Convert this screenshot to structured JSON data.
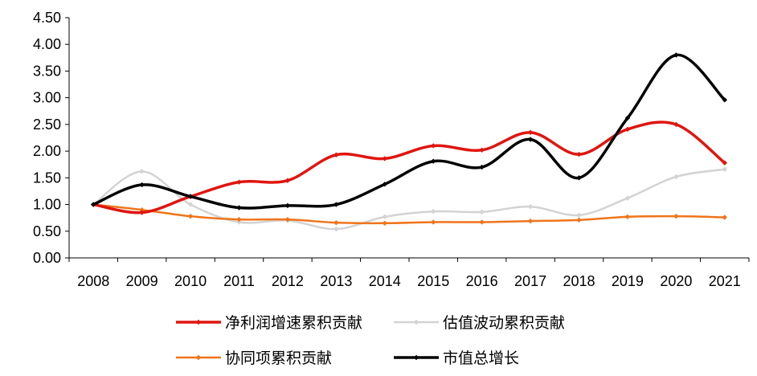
{
  "chart_data": {
    "type": "line",
    "title": "",
    "xlabel": "",
    "ylabel": "",
    "ylim": [
      0,
      4.5
    ],
    "y_ticks": [
      "0.00",
      "0.50",
      "1.00",
      "1.50",
      "2.00",
      "2.50",
      "3.00",
      "3.50",
      "4.00",
      "4.50"
    ],
    "categories": [
      "2008",
      "2009",
      "2010",
      "2011",
      "2012",
      "2013",
      "2014",
      "2015",
      "2016",
      "2017",
      "2018",
      "2019",
      "2020",
      "2021"
    ],
    "legend_position": "bottom",
    "series": [
      {
        "name": "净利润增速累积贡献",
        "color": "#e0150f",
        "values": [
          1.0,
          0.85,
          1.15,
          1.42,
          1.45,
          1.93,
          1.86,
          2.1,
          2.02,
          2.35,
          1.94,
          2.41,
          2.5,
          1.78
        ]
      },
      {
        "name": "估值波动累积贡献",
        "color": "#d3d3d3",
        "values": [
          1.0,
          1.62,
          1.0,
          0.67,
          0.7,
          0.54,
          0.77,
          0.87,
          0.86,
          0.96,
          0.8,
          1.12,
          1.52,
          1.66
        ]
      },
      {
        "name": "协同项累积贡献",
        "color": "#f0741a",
        "values": [
          1.0,
          0.9,
          0.78,
          0.72,
          0.72,
          0.66,
          0.65,
          0.67,
          0.67,
          0.69,
          0.71,
          0.77,
          0.78,
          0.76
        ]
      },
      {
        "name": "市值总增长",
        "color": "#000000",
        "values": [
          1.0,
          1.37,
          1.15,
          0.94,
          0.98,
          1.0,
          1.38,
          1.81,
          1.7,
          2.22,
          1.5,
          2.62,
          3.8,
          2.96
        ]
      }
    ]
  }
}
